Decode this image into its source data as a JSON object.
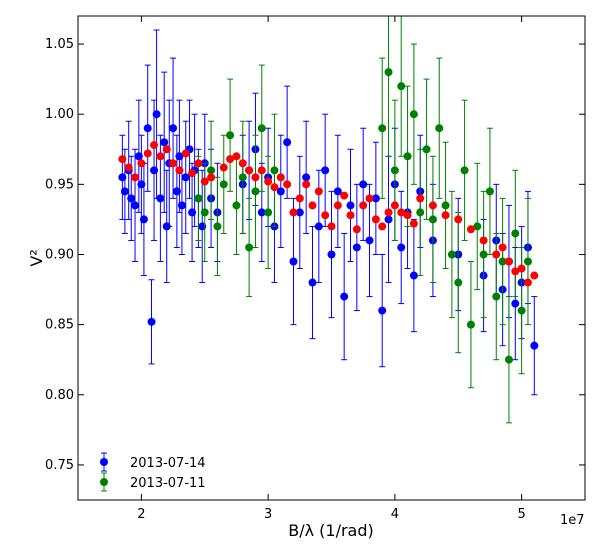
{
  "chart_data": {
    "type": "scatter",
    "xlabel": "B/λ (1/rad)",
    "ylabel": "V²",
    "x_multiplier_label": "1e7",
    "xlim": [
      1.5,
      5.5
    ],
    "ylim": [
      0.725,
      1.07
    ],
    "x_scale": 10000000,
    "xticks": [
      2,
      3,
      4,
      5
    ],
    "xtick_labels": [
      "2",
      "3",
      "4",
      "5"
    ],
    "yticks": [
      0.75,
      0.8,
      0.85,
      0.9,
      0.95,
      1.0,
      1.05
    ],
    "ytick_labels": [
      "0.75",
      "0.80",
      "0.85",
      "0.90",
      "0.95",
      "1.00",
      "1.05"
    ],
    "legend_position": "lower-left",
    "series": [
      {
        "name": "2013-07-14",
        "color": "#0000ff",
        "marker": "circle-errorbar",
        "x": [
          1.85,
          1.87,
          1.9,
          1.92,
          1.95,
          1.98,
          2.0,
          2.02,
          2.05,
          2.08,
          2.1,
          2.12,
          2.15,
          2.18,
          2.2,
          2.22,
          2.25,
          2.28,
          2.3,
          2.32,
          2.35,
          2.38,
          2.4,
          2.42,
          2.45,
          2.48,
          2.5,
          2.55,
          2.6,
          2.8,
          2.85,
          2.9,
          2.95,
          3.0,
          3.05,
          3.1,
          3.15,
          3.2,
          3.25,
          3.3,
          3.35,
          3.4,
          3.45,
          3.5,
          3.55,
          3.6,
          3.65,
          3.7,
          3.75,
          3.8,
          3.85,
          3.9,
          3.95,
          4.0,
          4.05,
          4.1,
          4.15,
          4.2,
          4.3,
          4.5,
          4.7,
          4.8,
          4.85,
          4.9,
          4.95,
          5.0,
          5.05,
          5.1
        ],
        "y": [
          0.955,
          0.945,
          0.96,
          0.94,
          0.935,
          0.97,
          0.95,
          0.925,
          0.99,
          0.852,
          0.96,
          1.0,
          0.94,
          0.98,
          0.92,
          0.965,
          0.99,
          0.945,
          0.97,
          0.935,
          0.955,
          0.975,
          0.93,
          0.96,
          0.94,
          0.92,
          0.965,
          0.94,
          0.93,
          0.95,
          0.96,
          0.975,
          0.93,
          0.955,
          0.92,
          0.945,
          0.98,
          0.895,
          0.93,
          0.955,
          0.88,
          0.92,
          0.96,
          0.9,
          0.945,
          0.87,
          0.935,
          0.905,
          0.95,
          0.91,
          0.94,
          0.86,
          0.925,
          0.95,
          0.905,
          0.93,
          0.885,
          0.945,
          0.91,
          0.9,
          0.885,
          0.91,
          0.875,
          0.895,
          0.865,
          0.88,
          0.905,
          0.835
        ],
        "err": [
          0.03,
          0.03,
          0.035,
          0.03,
          0.04,
          0.04,
          0.035,
          0.04,
          0.045,
          0.03,
          0.05,
          0.06,
          0.045,
          0.05,
          0.04,
          0.045,
          0.05,
          0.04,
          0.04,
          0.035,
          0.04,
          0.035,
          0.035,
          0.04,
          0.035,
          0.04,
          0.035,
          0.035,
          0.035,
          0.035,
          0.035,
          0.04,
          0.035,
          0.035,
          0.04,
          0.04,
          0.04,
          0.045,
          0.04,
          0.04,
          0.04,
          0.04,
          0.04,
          0.045,
          0.04,
          0.045,
          0.04,
          0.045,
          0.04,
          0.04,
          0.04,
          0.04,
          0.045,
          0.04,
          0.04,
          0.04,
          0.04,
          0.04,
          0.04,
          0.04,
          0.04,
          0.04,
          0.04,
          0.04,
          0.04,
          0.04,
          0.04,
          0.035
        ]
      },
      {
        "name": "2013-07-11",
        "color": "#008000",
        "marker": "circle-errorbar",
        "x": [
          2.45,
          2.5,
          2.55,
          2.6,
          2.65,
          2.7,
          2.75,
          2.8,
          2.85,
          2.9,
          2.95,
          3.0,
          3.05,
          3.9,
          3.95,
          4.0,
          4.05,
          4.1,
          4.15,
          4.2,
          4.25,
          4.3,
          4.35,
          4.4,
          4.45,
          4.5,
          4.55,
          4.6,
          4.65,
          4.7,
          4.75,
          4.8,
          4.85,
          4.9,
          4.95,
          5.0,
          5.05
        ],
        "y": [
          0.94,
          0.93,
          0.96,
          0.92,
          0.95,
          0.985,
          0.935,
          0.955,
          0.905,
          0.945,
          0.99,
          0.93,
          0.96,
          0.99,
          1.03,
          0.96,
          1.02,
          0.97,
          1.0,
          0.93,
          0.975,
          0.925,
          0.99,
          0.935,
          0.9,
          0.88,
          0.96,
          0.85,
          0.92,
          0.9,
          0.945,
          0.87,
          0.895,
          0.825,
          0.915,
          0.86,
          0.895
        ],
        "err": [
          0.03,
          0.035,
          0.035,
          0.035,
          0.035,
          0.04,
          0.035,
          0.04,
          0.035,
          0.04,
          0.045,
          0.04,
          0.04,
          0.05,
          0.06,
          0.05,
          0.05,
          0.05,
          0.05,
          0.045,
          0.05,
          0.045,
          0.05,
          0.045,
          0.045,
          0.05,
          0.05,
          0.045,
          0.045,
          0.045,
          0.045,
          0.045,
          0.045,
          0.045,
          0.045,
          0.045,
          0.045
        ]
      },
      {
        "name": "",
        "color": "#ff0000",
        "marker": "circle",
        "x": [
          1.85,
          1.9,
          1.95,
          2.0,
          2.05,
          2.1,
          2.15,
          2.2,
          2.25,
          2.3,
          2.35,
          2.4,
          2.45,
          2.5,
          2.55,
          2.65,
          2.7,
          2.75,
          2.8,
          2.85,
          2.9,
          2.95,
          3.0,
          3.05,
          3.1,
          3.15,
          3.2,
          3.25,
          3.3,
          3.35,
          3.4,
          3.45,
          3.5,
          3.55,
          3.6,
          3.65,
          3.7,
          3.75,
          3.8,
          3.85,
          3.9,
          3.95,
          4.0,
          4.05,
          4.1,
          4.15,
          4.2,
          4.3,
          4.4,
          4.5,
          4.6,
          4.7,
          4.8,
          4.85,
          4.9,
          4.95,
          5.0,
          5.05,
          5.1
        ],
        "y": [
          0.968,
          0.962,
          0.955,
          0.965,
          0.972,
          0.978,
          0.97,
          0.975,
          0.965,
          0.96,
          0.972,
          0.958,
          0.965,
          0.952,
          0.955,
          0.962,
          0.968,
          0.97,
          0.965,
          0.96,
          0.955,
          0.96,
          0.952,
          0.948,
          0.955,
          0.95,
          0.93,
          0.94,
          0.95,
          0.935,
          0.945,
          0.928,
          0.92,
          0.935,
          0.942,
          0.928,
          0.918,
          0.935,
          0.94,
          0.925,
          0.92,
          0.93,
          0.935,
          0.93,
          0.928,
          0.922,
          0.94,
          0.935,
          0.928,
          0.925,
          0.918,
          0.91,
          0.9,
          0.905,
          0.895,
          0.888,
          0.89,
          0.88,
          0.885
        ]
      }
    ]
  }
}
